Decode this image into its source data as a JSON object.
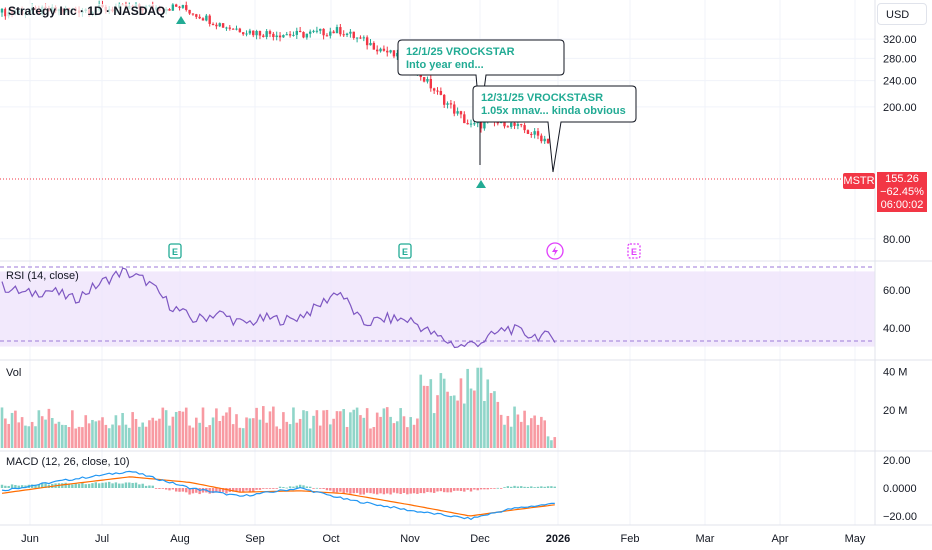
{
  "header": {
    "title": "Strategy Inc · 1D · NASDAQ",
    "currency_button": "USD"
  },
  "price_tag": {
    "symbol": "MSTR",
    "price": "155.26",
    "change": "−62.45%",
    "countdown": "06:00:02"
  },
  "colors": {
    "up": "#22ab94",
    "down": "#f23645",
    "rsi_line": "#7e57c2",
    "rsi_band": "#ede1fb",
    "macd_line": "#2196f3",
    "signal_line": "#ff6d00",
    "earnings_icon": "#22ab94",
    "dividend_icon": "#e040fb"
  },
  "icons": [
    "earnings-icon",
    "earnings-icon",
    "split-icon",
    "dividend-icon"
  ],
  "event_labels": [
    "E",
    "E",
    "E"
  ],
  "callouts": [
    {
      "line1": "12/1/25 VROCKSTAR",
      "line2": "Into year end..."
    },
    {
      "line1": "12/31/25 VROCKSTASR",
      "line2": "1.05x mnav... kinda obvious"
    }
  ],
  "chart_data": {
    "type": "candlestick",
    "price_axis": {
      "ticks": [
        "320.00",
        "280.00",
        "240.00",
        "200.00",
        "80.00"
      ],
      "scale": "log",
      "range": [
        70,
        420
      ]
    },
    "x_axis": {
      "ticks": [
        "Jun",
        "Jul",
        "Aug",
        "Sep",
        "Oct",
        "Nov",
        "Dec",
        "2026",
        "Feb",
        "Mar",
        "Apr",
        "May"
      ]
    },
    "last_price": 155.26,
    "price_series": [
      {
        "date": "Jun",
        "close": 385
      },
      {
        "date": "Jul",
        "close": 395
      },
      {
        "date": "Aug",
        "close": 400
      },
      {
        "date": "Aug mid",
        "close": 350
      },
      {
        "date": "Sep",
        "close": 335
      },
      {
        "date": "Sep mid",
        "close": 330
      },
      {
        "date": "Oct",
        "close": 340
      },
      {
        "date": "Oct mid",
        "close": 300
      },
      {
        "date": "Nov",
        "close": 270
      },
      {
        "date": "Nov mid",
        "close": 215
      },
      {
        "date": "Dec",
        "close": 175
      },
      {
        "date": "Dec mid",
        "close": 180
      },
      {
        "date": "2026",
        "close": 155.26
      }
    ],
    "rsi": {
      "title": "RSI (14, close)",
      "ticks": [
        "60.00",
        "40.00"
      ],
      "range": [
        25,
        75
      ],
      "band": [
        30,
        70
      ],
      "values": [
        62,
        58,
        60,
        55,
        63,
        70,
        65,
        52,
        44,
        48,
        42,
        45,
        44,
        50,
        60,
        42,
        45,
        44,
        36,
        30,
        33,
        40,
        36,
        35
      ]
    },
    "volume": {
      "title": "Vol",
      "ticks": [
        "40 M",
        "20 M"
      ],
      "range": [
        0,
        45
      ]
    },
    "macd": {
      "title": "MACD (12, 26, close, 10)",
      "ticks": [
        "20.00",
        "0.0000",
        "−20.00"
      ],
      "range": [
        -25,
        25
      ]
    }
  }
}
